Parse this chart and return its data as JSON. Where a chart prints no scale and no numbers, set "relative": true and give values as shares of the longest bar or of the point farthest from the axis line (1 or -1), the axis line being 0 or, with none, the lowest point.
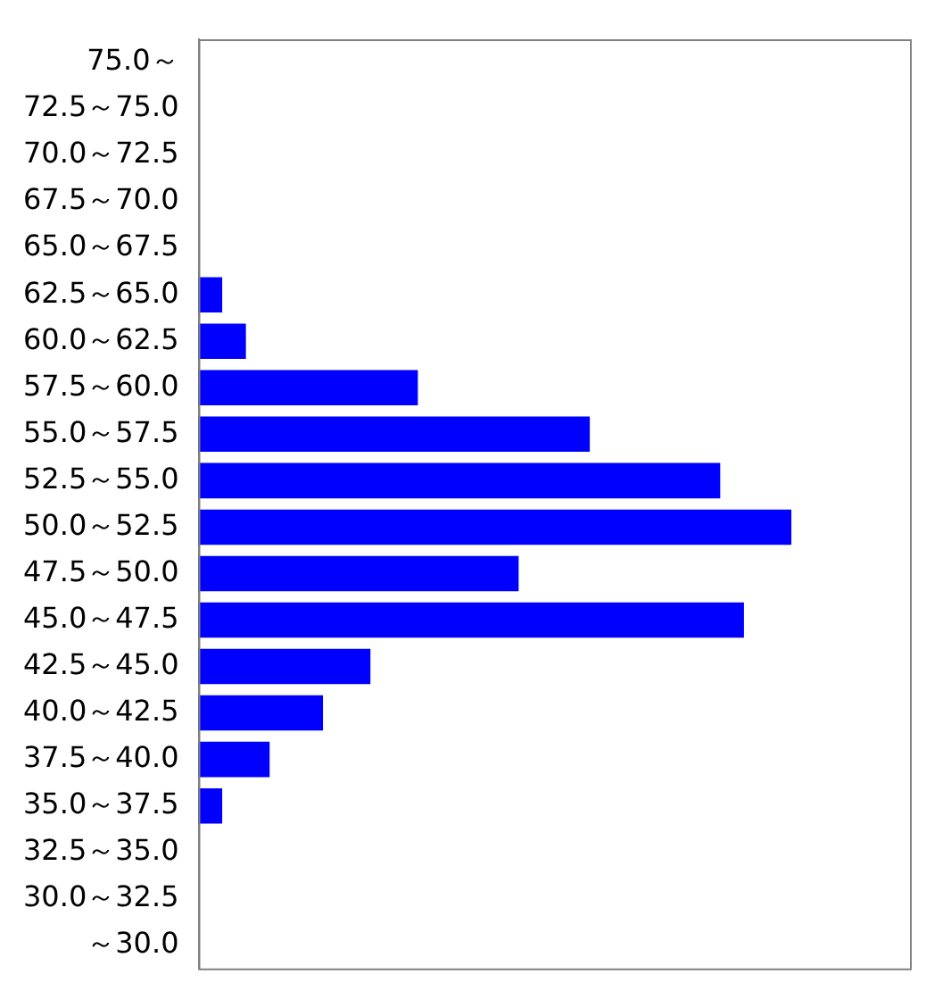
{
  "chart_data": {
    "type": "bar",
    "orientation": "horizontal",
    "relative": true,
    "categories": [
      "75.0～",
      "72.5～75.0",
      "70.0～72.5",
      "67.5～70.0",
      "65.0～67.5",
      "62.5～65.0",
      "60.0～62.5",
      "57.5～60.0",
      "55.0～57.5",
      "52.5～55.0",
      "50.0～52.5",
      "47.5～50.0",
      "45.0～47.5",
      "42.5～45.0",
      "40.0～42.5",
      "37.5～40.0",
      "35.0～37.5",
      "32.5～35.0",
      "30.0～32.5",
      "～30.0"
    ],
    "values": [
      0,
      0,
      0,
      0,
      0,
      0.04,
      0.08,
      0.37,
      0.66,
      0.88,
      1,
      0.54,
      0.92,
      0.29,
      0.21,
      0.12,
      0.04,
      0,
      0,
      0
    ],
    "color": "#0000ff",
    "legend": false
  }
}
